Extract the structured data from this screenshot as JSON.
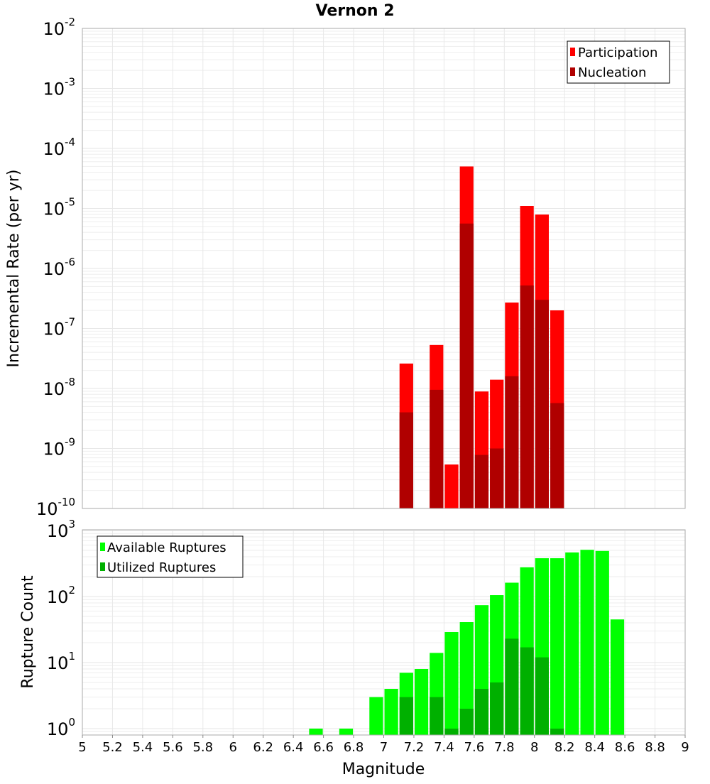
{
  "chart_data": [
    {
      "type": "bar",
      "title": "Vernon 2",
      "xlabel": "Magnitude",
      "ylabel": "Incremental Rate (per yr)",
      "yscale": "log",
      "ylim": [
        1e-10,
        0.01
      ],
      "xlim": [
        5,
        9
      ],
      "grid": true,
      "legend_position": "top-right",
      "bin_width": 0.1,
      "x": [
        7.15,
        7.35,
        7.45,
        7.55,
        7.65,
        7.75,
        7.85,
        7.95,
        8.05,
        8.15
      ],
      "series": [
        {
          "name": "Participation",
          "color": "#ff0000",
          "values": [
            2.6e-08,
            5.3e-08,
            5.4e-10,
            5e-05,
            8.9e-09,
            1.4e-08,
            2.7e-07,
            1.1e-05,
            7.9e-06,
            2e-07
          ]
        },
        {
          "name": "Nucleation",
          "color": "#b00000",
          "values": [
            4e-09,
            9.5e-09,
            null,
            5.6e-06,
            7.8e-10,
            1e-09,
            1.6e-08,
            5.2e-07,
            3e-07,
            5.7e-09
          ]
        }
      ],
      "ytick_exponents": [
        -10,
        -9,
        -8,
        -7,
        -6,
        -5,
        -4,
        -3,
        -2
      ]
    },
    {
      "type": "bar",
      "xlabel": "Magnitude",
      "ylabel": "Rupture Count",
      "yscale": "log",
      "ylim": [
        0.8,
        1000
      ],
      "xlim": [
        5,
        9
      ],
      "grid": true,
      "legend_position": "top-left",
      "bin_width": 0.1,
      "x": [
        6.55,
        6.75,
        6.95,
        7.05,
        7.15,
        7.25,
        7.35,
        7.45,
        7.55,
        7.65,
        7.75,
        7.85,
        7.95,
        8.05,
        8.15,
        8.25,
        8.35,
        8.45,
        8.55
      ],
      "series": [
        {
          "name": "Available Ruptures",
          "color": "#00ff00",
          "values": [
            1,
            1,
            3,
            4,
            7,
            8,
            14,
            29,
            41,
            74,
            105,
            162,
            277,
            380,
            380,
            465,
            510,
            490,
            45
          ]
        },
        {
          "name": "Utilized Ruptures",
          "color": "#00b000",
          "values": [
            null,
            null,
            null,
            null,
            3,
            null,
            3,
            1,
            2,
            4,
            5,
            23,
            17,
            12,
            1,
            null,
            null,
            null,
            null
          ]
        }
      ],
      "ytick_exponents": [
        0,
        1,
        2,
        3
      ]
    }
  ],
  "xticks": [
    "5",
    "5.2",
    "5.4",
    "5.6",
    "5.8",
    "6",
    "6.2",
    "6.4",
    "6.6",
    "6.8",
    "7",
    "7.2",
    "7.4",
    "7.6",
    "7.8",
    "8",
    "8.2",
    "8.4",
    "8.6",
    "8.8",
    "9"
  ],
  "tick_base": "10"
}
